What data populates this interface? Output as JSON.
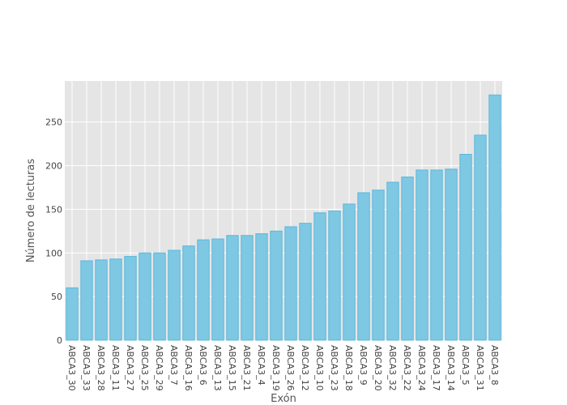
{
  "chart_data": {
    "type": "bar",
    "xlabel": "Exón",
    "ylabel": "Número de lecturas",
    "ylim": [
      0,
      297
    ],
    "yticks": [
      0,
      50,
      100,
      150,
      200,
      250
    ],
    "grid": true,
    "bar_color": "#7ec8e3",
    "bar_edge_color": "#5bb8dc",
    "plot_background": "#e5e5e5",
    "categories": [
      "ABCA3_30",
      "ABCA3_33",
      "ABCA3_28",
      "ABCA3_11",
      "ABCA3_27",
      "ABCA3_25",
      "ABCA3_29",
      "ABCA3_7",
      "ABCA3_16",
      "ABCA3_6",
      "ABCA3_13",
      "ABCA3_15",
      "ABCA3_21",
      "ABCA3_4",
      "ABCA3_19",
      "ABCA3_26",
      "ABCA3_12",
      "ABCA3_10",
      "ABCA3_23",
      "ABCA3_18",
      "ABCA3_9",
      "ABCA3_20",
      "ABCA3_32",
      "ABCA3_22",
      "ABCA3_24",
      "ABCA3_17",
      "ABCA3_14",
      "ABCA3_5",
      "ABCA3_31",
      "ABCA3_8"
    ],
    "values": [
      60,
      91,
      92,
      93,
      96,
      100,
      100,
      103,
      108,
      115,
      116,
      120,
      120,
      122,
      125,
      130,
      134,
      146,
      148,
      156,
      169,
      172,
      181,
      187,
      195,
      195,
      196,
      213,
      235,
      281
    ]
  }
}
